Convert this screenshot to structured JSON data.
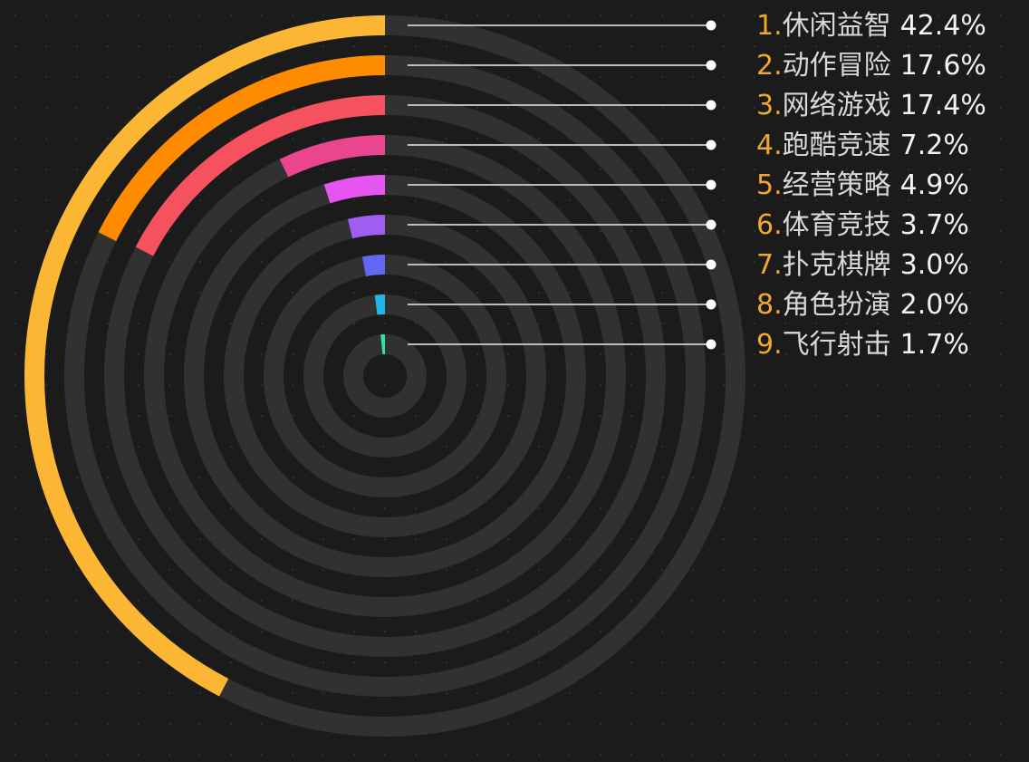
{
  "chart_data": {
    "type": "radial_bar",
    "ranks": [
      "1.",
      "2.",
      "3.",
      "4.",
      "5.",
      "6.",
      "7.",
      "8.",
      "9."
    ],
    "categories": [
      "休闲益智",
      "动作冒险",
      "网络游戏",
      "跑酷竞速",
      "经营策略",
      "体育竞技",
      "扑克棋牌",
      "角色扮演",
      "飞行射击"
    ],
    "values": [
      42.4,
      17.6,
      17.4,
      7.2,
      4.9,
      3.7,
      3.0,
      2.0,
      1.7
    ],
    "value_labels": [
      "42.4%",
      "17.6%",
      "17.4%",
      "7.2%",
      "4.9%",
      "3.7%",
      "3.0%",
      "2.0%",
      "1.7%"
    ],
    "colors": [
      "#fbb733",
      "#ff8c00",
      "#f5515f",
      "#e9468f",
      "#e655f0",
      "#a15cf2",
      "#6366f1",
      "#22b5e8",
      "#2ee59d"
    ]
  }
}
